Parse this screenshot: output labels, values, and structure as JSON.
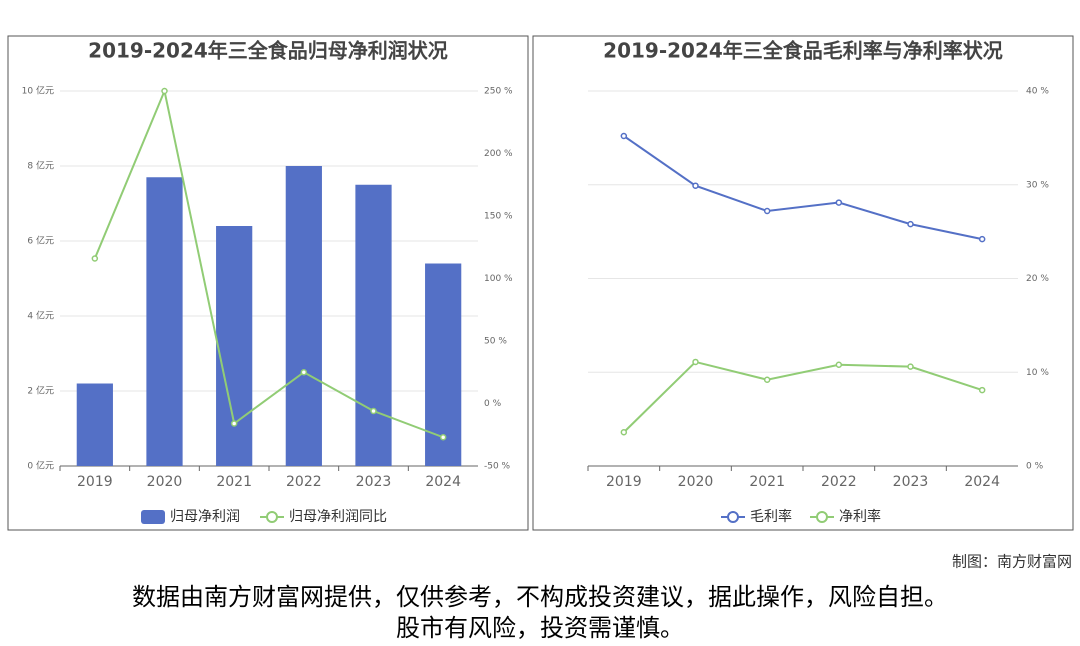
{
  "chart_data": [
    {
      "type": "bar",
      "title": "2019-2024年三全食品归母净利润状况",
      "categories": [
        "2019",
        "2020",
        "2021",
        "2022",
        "2023",
        "2024"
      ],
      "series": [
        {
          "name": "归母净利润",
          "type": "bar",
          "color": "#5470c6",
          "values": [
            2.2,
            7.7,
            6.4,
            8.0,
            7.5,
            5.4
          ]
        },
        {
          "name": "归母净利润同比",
          "type": "line",
          "axis": "y2",
          "color": "#91cc75",
          "values": [
            116,
            250,
            -16,
            25,
            -6,
            -27
          ]
        }
      ],
      "ylim": [
        0,
        10
      ],
      "yticks": [
        {
          "value": 0,
          "label": "0 亿元"
        },
        {
          "value": 2,
          "label": "2 亿元"
        },
        {
          "value": 4,
          "label": "4 亿元"
        },
        {
          "value": 6,
          "label": "6 亿元"
        },
        {
          "value": 8,
          "label": "8 亿元"
        },
        {
          "value": 10,
          "label": "10 亿元"
        }
      ],
      "y2lim": [
        -50,
        250
      ],
      "y2ticks": [
        {
          "value": -50,
          "label": "-50 %"
        },
        {
          "value": 0,
          "label": "0 %"
        },
        {
          "value": 50,
          "label": "50 %"
        },
        {
          "value": 100,
          "label": "100 %"
        },
        {
          "value": 150,
          "label": "150 %"
        },
        {
          "value": 200,
          "label": "200 %"
        },
        {
          "value": 250,
          "label": "250 %"
        }
      ],
      "grid": true,
      "legend": "bottom"
    },
    {
      "type": "line",
      "title": "2019-2024年三全食品毛利率与净利率状况",
      "categories": [
        "2019",
        "2020",
        "2021",
        "2022",
        "2023",
        "2024"
      ],
      "series": [
        {
          "name": "毛利率",
          "type": "line",
          "color": "#5470c6",
          "values": [
            35.2,
            29.9,
            27.2,
            28.1,
            25.8,
            24.2
          ]
        },
        {
          "name": "净利率",
          "type": "line",
          "color": "#91cc75",
          "values": [
            3.6,
            11.1,
            9.2,
            10.8,
            10.6,
            8.1
          ]
        }
      ],
      "ylim": [
        0,
        40
      ],
      "yticks": [
        {
          "value": 0,
          "label": "0 %"
        },
        {
          "value": 10,
          "label": "10 %"
        },
        {
          "value": 20,
          "label": "20 %"
        },
        {
          "value": 30,
          "label": "30 %"
        },
        {
          "value": 40,
          "label": "40 %"
        }
      ],
      "y_axis_position": "right",
      "grid": true,
      "legend": "bottom"
    }
  ],
  "footer": {
    "credit": "制图：南方财富网",
    "disclaimer": [
      "数据由南方财富网提供，仅供参考，不构成投资建议，据此操作，风险自担。",
      "股市有风险，投资需谨慎。"
    ]
  }
}
